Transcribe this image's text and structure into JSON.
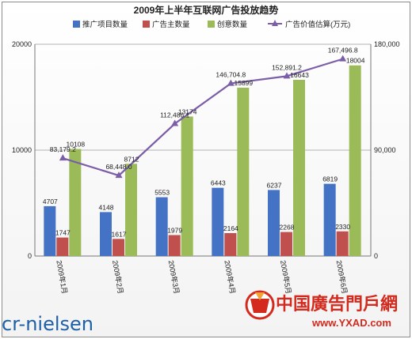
{
  "chart_data": {
    "type": "bar+line",
    "title": "2009年上半年互联网广告投放趋势",
    "categories": [
      "2009年1月",
      "2009年2月",
      "2009年3月",
      "2009年4月",
      "2009年5月",
      "2009年6月"
    ],
    "series": [
      {
        "name": "推广项目数量",
        "type": "bar",
        "axis": "left",
        "color": "#4472c4",
        "values": [
          4707,
          4148,
          5553,
          6443,
          6237,
          6819
        ]
      },
      {
        "name": "广告主数量",
        "type": "bar",
        "axis": "left",
        "color": "#c0504d",
        "values": [
          1747,
          1617,
          1979,
          2164,
          2268,
          2330
        ]
      },
      {
        "name": "创意数量",
        "type": "bar",
        "axis": "left",
        "color": "#9bbb59",
        "values": [
          10108,
          8712,
          13174,
          15899,
          16643,
          18004
        ]
      },
      {
        "name": "广告价值估算(万元)",
        "type": "line",
        "axis": "right",
        "color": "#7b5ea7",
        "values": [
          83179.2,
          68448.0,
          112486.1,
          146704.8,
          152891.2,
          167496.8
        ]
      }
    ],
    "data_labels": {
      "推广项目数量": [
        "4707",
        "4148",
        "5553",
        "6443",
        "6237",
        "6819"
      ],
      "广告主数量": [
        "1747",
        "1617",
        "1979",
        "2164",
        "2268",
        "2330"
      ],
      "创意数量": [
        "10108",
        "8712",
        "13174",
        "15899",
        "16643",
        "18004"
      ],
      "广告价值估算(万元)": [
        "83,179.2",
        "68,448.0",
        "112,486.1",
        "146,704.8",
        "152,891.2",
        "167,496.8"
      ]
    },
    "y_left": {
      "min": 0,
      "max": 20000,
      "ticks": [
        "0",
        "10000",
        "20000"
      ]
    },
    "y_right": {
      "min": 0,
      "max": 180000,
      "ticks": [
        "0",
        "90,000",
        "180,000"
      ]
    },
    "grid": true,
    "legend_position": "top"
  },
  "logo_text": "cr-nielsen",
  "watermark": {
    "brand": "中国廣告門戶網",
    "url": "www.YXAD.com"
  }
}
